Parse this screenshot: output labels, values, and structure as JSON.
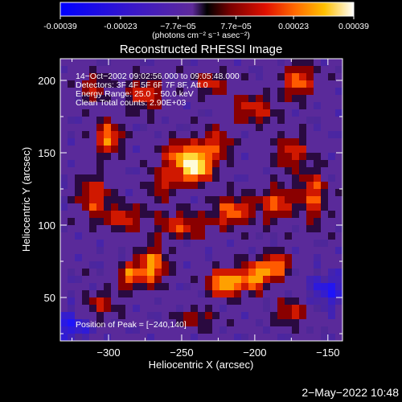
{
  "chart_data": {
    "type": "heatmap",
    "title": "Reconstructed RHESSI Image",
    "xlabel": "Heliocentric X (arcsec)",
    "ylabel": "Heliocentric Y (arcsec)",
    "xlim": [
      -333,
      -140
    ],
    "ylim": [
      20,
      215
    ],
    "x_ticks": [
      -300,
      -250,
      -200,
      -150
    ],
    "y_ticks": [
      50,
      100,
      150,
      200
    ],
    "colorbar": {
      "ticks": [
        "-0.00039",
        "-0.00023",
        "−7.7e−05",
        "7.7e−05",
        "0.00023",
        "0.00039"
      ],
      "tick_values": [
        -0.00039,
        -0.00023,
        -7.7e-05,
        7.7e-05,
        0.00023,
        0.00039
      ],
      "range": [
        -0.00039,
        0.00039
      ],
      "units": "(photons cm⁻² s⁻¹ asec⁻²)"
    },
    "annotations": {
      "time_range": "14−Oct−2002 09:02:56.000 to 09:05:48.000",
      "detectors": "Detectors: 3F 4F 5F 6F 7F 8F, Att 0",
      "energy": "Energy Range: 25.0 − 50.0 keV",
      "clean": "Clean     Total counts: 2.90E+03",
      "peak": "Position of Peak = [−240,140]"
    },
    "peak": {
      "x": -240,
      "y": 140
    },
    "blobs": [
      {
        "x": -240,
        "y": 140,
        "amp": 1.0,
        "sx": 7,
        "sy": 7
      },
      {
        "x": -252,
        "y": 147,
        "amp": 0.55,
        "sx": 9,
        "sy": 8
      },
      {
        "x": -228,
        "y": 155,
        "amp": 0.45,
        "sx": 8,
        "sy": 8
      },
      {
        "x": -262,
        "y": 128,
        "amp": 0.4,
        "sx": 8,
        "sy": 7
      },
      {
        "x": -220,
        "y": 60,
        "amp": 0.85,
        "sx": 8,
        "sy": 6
      },
      {
        "x": -200,
        "y": 65,
        "amp": 0.75,
        "sx": 7,
        "sy": 7
      },
      {
        "x": -185,
        "y": 72,
        "amp": 0.7,
        "sx": 6,
        "sy": 6
      },
      {
        "x": -270,
        "y": 72,
        "amp": 0.7,
        "sx": 7,
        "sy": 9
      },
      {
        "x": -285,
        "y": 65,
        "amp": 0.55,
        "sx": 6,
        "sy": 6
      },
      {
        "x": -300,
        "y": 160,
        "amp": 0.65,
        "sx": 6,
        "sy": 8
      },
      {
        "x": -310,
        "y": 120,
        "amp": 0.5,
        "sx": 7,
        "sy": 10
      },
      {
        "x": -290,
        "y": 105,
        "amp": 0.45,
        "sx": 10,
        "sy": 6
      },
      {
        "x": -250,
        "y": 100,
        "amp": 0.45,
        "sx": 12,
        "sy": 6
      },
      {
        "x": -215,
        "y": 110,
        "amp": 0.6,
        "sx": 9,
        "sy": 7
      },
      {
        "x": -185,
        "y": 115,
        "amp": 0.55,
        "sx": 8,
        "sy": 8
      },
      {
        "x": -160,
        "y": 120,
        "amp": 0.55,
        "sx": 6,
        "sy": 12
      },
      {
        "x": -175,
        "y": 150,
        "amp": 0.45,
        "sx": 8,
        "sy": 8
      },
      {
        "x": -200,
        "y": 180,
        "amp": 0.45,
        "sx": 10,
        "sy": 7
      },
      {
        "x": -170,
        "y": 200,
        "amp": 0.55,
        "sx": 8,
        "sy": 8
      },
      {
        "x": -230,
        "y": 198,
        "amp": 0.4,
        "sx": 8,
        "sy": 6
      },
      {
        "x": -275,
        "y": 190,
        "amp": 0.45,
        "sx": 9,
        "sy": 8
      },
      {
        "x": -310,
        "y": 195,
        "amp": 0.35,
        "sx": 7,
        "sy": 7
      },
      {
        "x": -305,
        "y": 45,
        "amp": 0.35,
        "sx": 8,
        "sy": 6
      },
      {
        "x": -175,
        "y": 40,
        "amp": 0.4,
        "sx": 8,
        "sy": 6
      },
      {
        "x": -240,
        "y": 35,
        "amp": 0.3,
        "sx": 10,
        "sy": 5
      },
      {
        "x": -150,
        "y": 55,
        "amp": -0.3,
        "sx": 8,
        "sy": 8
      },
      {
        "x": -325,
        "y": 30,
        "amp": -0.3,
        "sx": 8,
        "sy": 8
      }
    ]
  },
  "footer": {
    "timestamp": "2−May−2022 10:48"
  }
}
